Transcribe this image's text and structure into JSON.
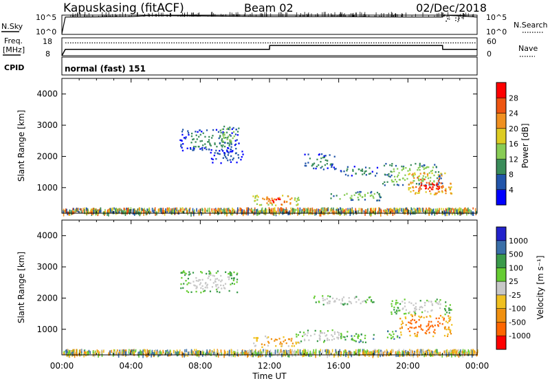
{
  "header": {
    "station": "Kapuskasing (fitACF)",
    "beam": "Beam 02",
    "date": "02/Dec/2018"
  },
  "noise_panel": {
    "left_label": "N.Sky",
    "right_label": "N.Search",
    "left_ticks": [
      "10^5",
      "10^0"
    ],
    "right_ticks": [
      "10^5",
      "10^0"
    ]
  },
  "freq_panel": {
    "left_label_line1": "Freq.",
    "left_label_line2": "[MHz]",
    "right_label": "Nave",
    "left_ticks": [
      "18",
      "8"
    ],
    "right_ticks": [
      "60",
      "0"
    ]
  },
  "cpid_panel": {
    "label": "CPID",
    "text": "normal (fast) 151"
  },
  "power_panel": {
    "ylabel": "Slant Range [km]",
    "colorbar_label": "Power [dB]",
    "colorbar_ticks": [
      "28",
      "24",
      "20",
      "16",
      "12",
      "8",
      "4"
    ],
    "colors": [
      "#0000ff",
      "#2255aa",
      "#3a8c5a",
      "#88cc55",
      "#ddcc22",
      "#f09020",
      "#ee5511",
      "#ff0000"
    ]
  },
  "velocity_panel": {
    "ylabel": "Slant Range [km]",
    "colorbar_label": "Velocity [m s⁻¹]",
    "colorbar_ticks": [
      "1000",
      "500",
      "100",
      "25",
      "-25",
      "-100",
      "-500",
      "-1000"
    ],
    "colors": [
      "#2222cc",
      "#3a6fa8",
      "#3a9a4a",
      "#66cc33",
      "#c8c8c8",
      "#f0c020",
      "#f09010",
      "#ff6600",
      "#ff0000"
    ]
  },
  "xaxis": {
    "label": "Time UT",
    "ticks": [
      "00:00",
      "04:00",
      "08:00",
      "12:00",
      "16:00",
      "20:00",
      "00:00"
    ]
  },
  "chart_data": [
    {
      "type": "line",
      "name": "noise",
      "x": [
        0,
        0.2,
        4,
        5,
        8,
        10,
        12,
        16,
        20,
        22,
        22.1,
        23,
        24
      ],
      "y_log": [
        0.2,
        4.5,
        4.6,
        4.9,
        4.8,
        4.7,
        4.6,
        4.6,
        4.5,
        4.5,
        5.0,
        4.8,
        4.5
      ],
      "ylim": [
        0,
        5
      ]
    },
    {
      "type": "line",
      "name": "frequency",
      "x": [
        0,
        0.2,
        12,
        12.01,
        22,
        22.01,
        24
      ],
      "y": [
        5,
        10,
        10,
        13,
        13,
        10,
        10
      ],
      "ylim": [
        5,
        19
      ],
      "dotted_nave_level": 43
    },
    {
      "type": "heatmap",
      "name": "power",
      "xlabel": "Time UT",
      "ylabel": "Slant Range [km]",
      "xlim": [
        0,
        24
      ],
      "ylim": [
        180,
        4500
      ],
      "colorbar": "Power [dB]",
      "blobs": [
        {
          "t0": 6.8,
          "t1": 10.2,
          "r0": 2200,
          "r1": 2900,
          "level": 2
        },
        {
          "t0": 9.0,
          "t1": 10.2,
          "r0": 2400,
          "r1": 3000,
          "level": 3
        },
        {
          "t0": 8.5,
          "t1": 10.5,
          "r0": 1800,
          "r1": 2200,
          "level": 1
        },
        {
          "t0": 11.0,
          "t1": 13.8,
          "r0": 450,
          "r1": 800,
          "level": 5
        },
        {
          "t0": 11.8,
          "t1": 12.9,
          "r0": 480,
          "r1": 720,
          "level": 7
        },
        {
          "t0": 14.0,
          "t1": 15.8,
          "r0": 1600,
          "r1": 2100,
          "level": 2
        },
        {
          "t0": 15.5,
          "t1": 18.5,
          "r0": 600,
          "r1": 900,
          "level": 3
        },
        {
          "t0": 16.0,
          "t1": 18.2,
          "r0": 1400,
          "r1": 1700,
          "level": 2
        },
        {
          "t0": 18.5,
          "t1": 22.0,
          "r0": 1100,
          "r1": 1800,
          "level": 3
        },
        {
          "t0": 20.0,
          "t1": 22.5,
          "r0": 800,
          "r1": 1500,
          "level": 6
        },
        {
          "t0": 20.5,
          "t1": 22.0,
          "r0": 900,
          "r1": 1200,
          "level": 7
        }
      ]
    },
    {
      "type": "heatmap",
      "name": "velocity",
      "xlabel": "Time UT",
      "ylabel": "Slant Range [km]",
      "xlim": [
        0,
        24
      ],
      "ylim": [
        180,
        4500
      ],
      "colorbar": "Velocity [m s⁻¹]",
      "blobs": [
        {
          "t0": 6.8,
          "t1": 10.2,
          "r0": 2200,
          "r1": 2900,
          "level": 4
        },
        {
          "t0": 11.0,
          "t1": 13.8,
          "r0": 450,
          "r1": 800,
          "level": 6
        },
        {
          "t0": 13.5,
          "t1": 16.5,
          "r0": 600,
          "r1": 1000,
          "level": 4
        },
        {
          "t0": 14.5,
          "t1": 18.0,
          "r0": 1800,
          "r1": 2100,
          "level": 4
        },
        {
          "t0": 16.5,
          "t1": 18.0,
          "r0": 600,
          "r1": 900,
          "level": 3
        },
        {
          "t0": 19.0,
          "t1": 22.5,
          "r0": 1500,
          "r1": 2000,
          "level": 4
        },
        {
          "t0": 19.5,
          "t1": 22.5,
          "r0": 800,
          "r1": 1500,
          "level": 7
        },
        {
          "t0": 18.5,
          "t1": 19.5,
          "r0": 700,
          "r1": 1000,
          "level": 3
        }
      ]
    }
  ]
}
